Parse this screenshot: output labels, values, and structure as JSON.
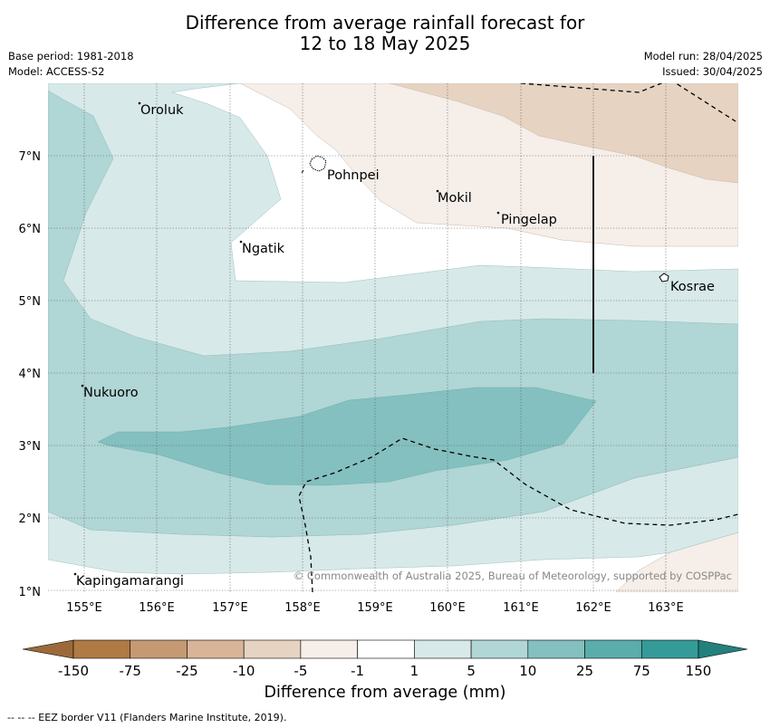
{
  "title": {
    "line1": "Difference from average rainfall forecast for",
    "line2": "12 to 18 May 2025"
  },
  "meta_left": {
    "base_period": "Base period: 1981-2018",
    "model": "Model: ACCESS-S2"
  },
  "meta_right": {
    "model_run": "Model run: 28/04/2025",
    "issued": "Issued: 30/04/2025"
  },
  "map": {
    "lat_ticks": [
      "7°N",
      "6°N",
      "5°N",
      "4°N",
      "3°N",
      "2°N",
      "1°N"
    ],
    "lon_ticks": [
      "155°E",
      "156°E",
      "157°E",
      "158°E",
      "159°E",
      "160°E",
      "161°E",
      "162°E",
      "163°E"
    ],
    "places": {
      "oroluk": "Oroluk",
      "pohnpei": "Pohnpei",
      "mokil": "Mokil",
      "pingelap": "Pingelap",
      "ngatik": "Ngatik",
      "kosrae": "Kosrae",
      "nukuoro": "Nukuoro",
      "kapingamarangi": "Kapingamarangi"
    },
    "credit": "© Commonwealth of Australia 2025, Bureau of Meteorology, supported by COSPPac"
  },
  "colorbar": {
    "labels": [
      "-150",
      "-75",
      "-25",
      "-10",
      "-5",
      "-1",
      "1",
      "5",
      "10",
      "25",
      "75",
      "150"
    ],
    "colors": [
      "#9c6a3a",
      "#b07a44",
      "#c59a72",
      "#d8b598",
      "#e6d3c1",
      "#f5eee9",
      "#ffffff",
      "#d7e9e8",
      "#b0d6d5",
      "#84c0bf",
      "#5aadaa",
      "#359b98",
      "#23807c"
    ],
    "title": "Difference from average (mm)"
  },
  "footnote": "--  --  -- EEZ border V11 (Flanders Marine Institute, 2019)."
}
